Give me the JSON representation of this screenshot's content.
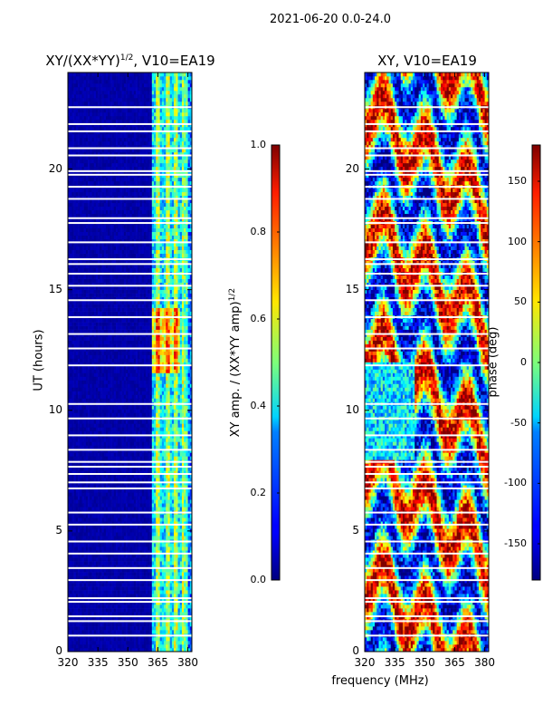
{
  "figure": {
    "suptitle": "2021-06-20 0.0-24.0"
  },
  "chart_data": [
    {
      "type": "heatmap",
      "title": "XY/(XX*YY)^{1/2}, V10=EA19",
      "title_main": "XY/(XX*YY)",
      "title_exp": "1/2",
      "title_tail": ", V10=EA19",
      "xlabel": "",
      "ylabel": "UT (hours)",
      "xlim": [
        320,
        382
      ],
      "ylim": [
        0,
        24
      ],
      "xticks": [
        320,
        335,
        350,
        365,
        380
      ],
      "yticks": [
        0,
        5,
        10,
        15,
        20
      ],
      "colorbar": {
        "label_main": "XY amp. / (XX*YY amp)",
        "label_exp": "1/2",
        "range": [
          0.0,
          1.0
        ],
        "ticks": [
          "0.0",
          "0.2",
          "0.4",
          "0.6",
          "0.8",
          "1.0"
        ]
      },
      "description": "Normalized cross-correlation amplitude; mostly low (~0.0) below 360 MHz, elevated (0.3-0.7) in channels above ~360 MHz, peaks near 12-14 UT."
    },
    {
      "type": "heatmap",
      "title": "XY, V10=EA19",
      "xlabel": "frequency (MHz)",
      "ylabel": "",
      "xlim": [
        320,
        382
      ],
      "ylim": [
        0,
        24
      ],
      "xticks": [
        320,
        335,
        350,
        365,
        380
      ],
      "yticks": [
        0,
        5,
        10,
        15,
        20
      ],
      "colorbar": {
        "label": "phase (deg)",
        "range": [
          -180,
          180
        ],
        "ticks": [
          "-150",
          "-100",
          "-50",
          "0",
          "50",
          "100",
          "150"
        ]
      },
      "description": "Cross-correlation phase, values spanning -180 to 180 degrees with banded structure in time."
    }
  ],
  "colors": {
    "jet_low": "#00007f",
    "jet_high": "#7f0000",
    "axis": "#000000"
  }
}
